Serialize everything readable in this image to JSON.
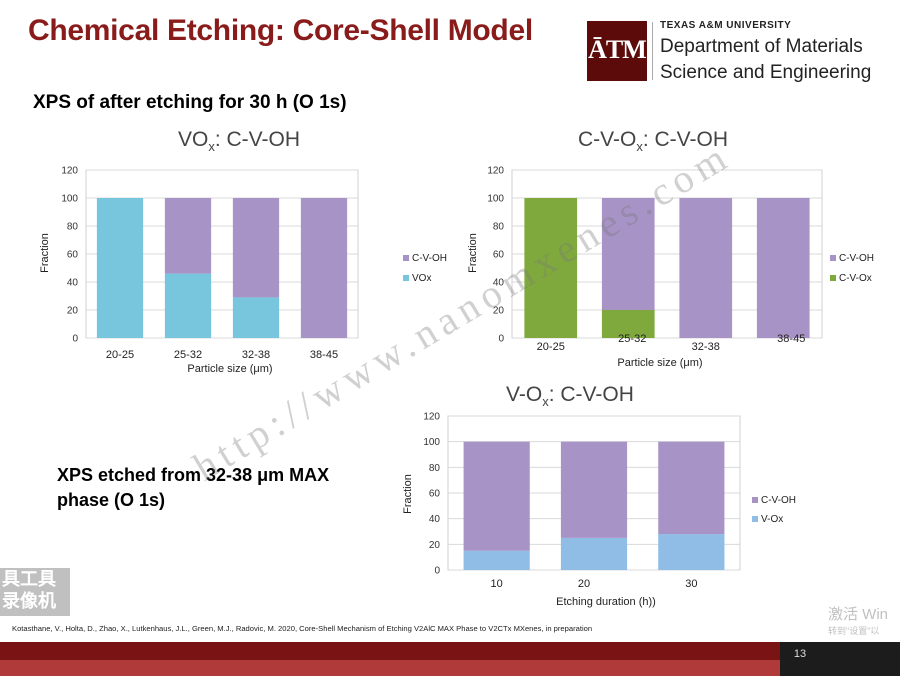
{
  "slide": {
    "title": "Chemical Etching: Core-Shell Model",
    "subtitle": "XPS of after etching for 30 h (O 1s)",
    "note": "XPS etched from 32-38 μm MAX phase (O 1s)",
    "citation": "Kotasthane, V., Holta, D., Zhao, X., Lutkenhaus, J.L., Green, M.J., Radovic, M. 2020, Core-Shell Mechanism of Etching V2AlC MAX Phase to V2CTx MXenes, in preparation",
    "page_number": "13"
  },
  "logo": {
    "mark": "ĀTM",
    "university": "TEXAS A&M UNIVERSITY",
    "dept_line1": "Department of Materials",
    "dept_line2": "Science and Engineering",
    "mark_color": "#5c0a0a"
  },
  "overlays": {
    "watermark": "http://www.nanomxenes.com",
    "activate_line1": "激活 Win",
    "activate_line2": "转到\"设置\"以",
    "tool_badge": "具工具 录像机"
  },
  "colors": {
    "title_red": "#8a1b1b",
    "purple": "#a893c7",
    "cyan": "#78c6dd",
    "green": "#7fa93d",
    "blue": "#8fbde6"
  },
  "chart_titles": {
    "c1": {
      "main": "VO",
      "sub": "x",
      "rest": ": C-V-OH"
    },
    "c2": {
      "main": "C-V-O",
      "sub": "x",
      "rest": ": C-V-OH"
    },
    "c3": {
      "main": "V-O",
      "sub": "x",
      "rest": ": C-V-OH"
    }
  },
  "chart_data": [
    {
      "type": "bar",
      "stacked": true,
      "categories": [
        "20-25",
        "25-32",
        "32-38",
        "38-45"
      ],
      "series": [
        {
          "name": "VOx",
          "values": [
            100,
            46,
            29,
            0
          ],
          "color": "#78c6dd"
        },
        {
          "name": "C-V-OH",
          "values": [
            0,
            54,
            71,
            100
          ],
          "color": "#a893c7"
        }
      ],
      "xlabel": "Particle size (μm)",
      "ylabel": "Fraction",
      "ylim": [
        0,
        120
      ],
      "yticks": [
        0,
        20,
        40,
        60,
        80,
        100,
        120
      ],
      "grid": true,
      "legend": "right",
      "legend_order": [
        "C-V-OH",
        "VOx"
      ]
    },
    {
      "type": "bar",
      "stacked": true,
      "categories": [
        "20-25",
        "25-32",
        "32-38",
        "38-45"
      ],
      "series": [
        {
          "name": "C-V-Ox",
          "values": [
            100,
            20,
            0,
            0
          ],
          "color": "#7fa93d"
        },
        {
          "name": "C-V-OH",
          "values": [
            0,
            80,
            100,
            100
          ],
          "color": "#a893c7"
        }
      ],
      "xlabel": "Particle size (μm)",
      "ylabel": "Fraction",
      "ylim": [
        0,
        120
      ],
      "yticks": [
        0,
        20,
        40,
        60,
        80,
        100,
        120
      ],
      "grid": true,
      "legend": "right",
      "legend_order": [
        "C-V-OH",
        "C-V-Ox"
      ]
    },
    {
      "type": "bar",
      "stacked": true,
      "categories": [
        "10",
        "20",
        "30"
      ],
      "series": [
        {
          "name": "V-Ox",
          "values": [
            15,
            25,
            28
          ],
          "color": "#8fbde6"
        },
        {
          "name": "C-V-OH",
          "values": [
            85,
            75,
            72
          ],
          "color": "#a893c7"
        }
      ],
      "xlabel": "Etching duration (h))",
      "ylabel": "Fraction",
      "ylim": [
        0,
        120
      ],
      "yticks": [
        0,
        20,
        40,
        60,
        80,
        100,
        120
      ],
      "grid": true,
      "legend": "right",
      "legend_order": [
        "C-V-OH",
        "V-Ox"
      ]
    }
  ]
}
